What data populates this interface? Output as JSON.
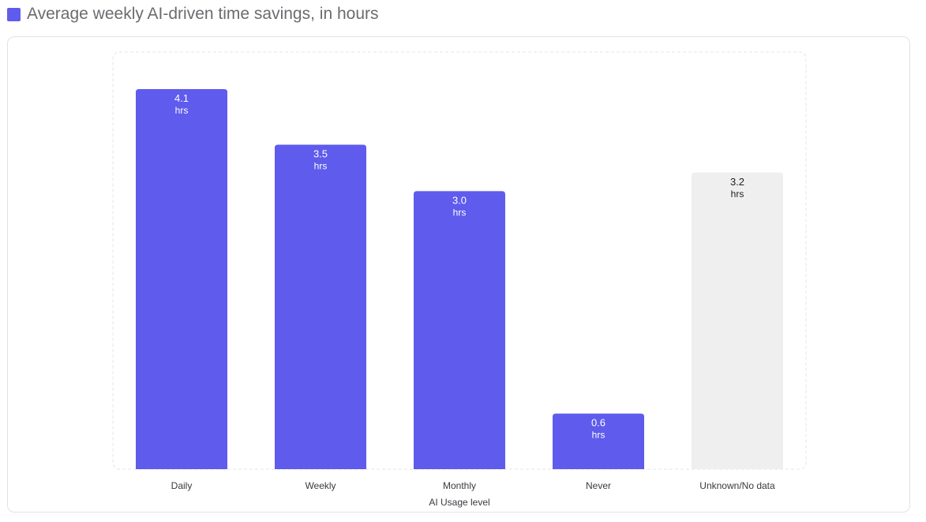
{
  "legend": {
    "label": "Average weekly AI-driven time savings, in hours",
    "swatch_color": "#5f5bed"
  },
  "chart_data": {
    "type": "bar",
    "title": "Average weekly AI-driven time savings, in hours",
    "xlabel": "AI Usage level",
    "ylabel": "",
    "categories": [
      "Daily",
      "Weekly",
      "Monthly",
      "Never",
      "Unknown/No data"
    ],
    "values": [
      4.1,
      3.5,
      3.0,
      0.6,
      3.2
    ],
    "value_labels": [
      "4.1",
      "3.5",
      "3.0",
      "0.6",
      "3.2"
    ],
    "unit_label": "hrs",
    "ylim": [
      0,
      4.1
    ],
    "grid": false,
    "bar_colors": [
      "#5f5bed",
      "#5f5bed",
      "#5f5bed",
      "#5f5bed",
      "#efefef"
    ],
    "label_colors": [
      "#ffffff",
      "#ffffff",
      "#ffffff",
      "#ffffff",
      "#1f1f24"
    ]
  }
}
